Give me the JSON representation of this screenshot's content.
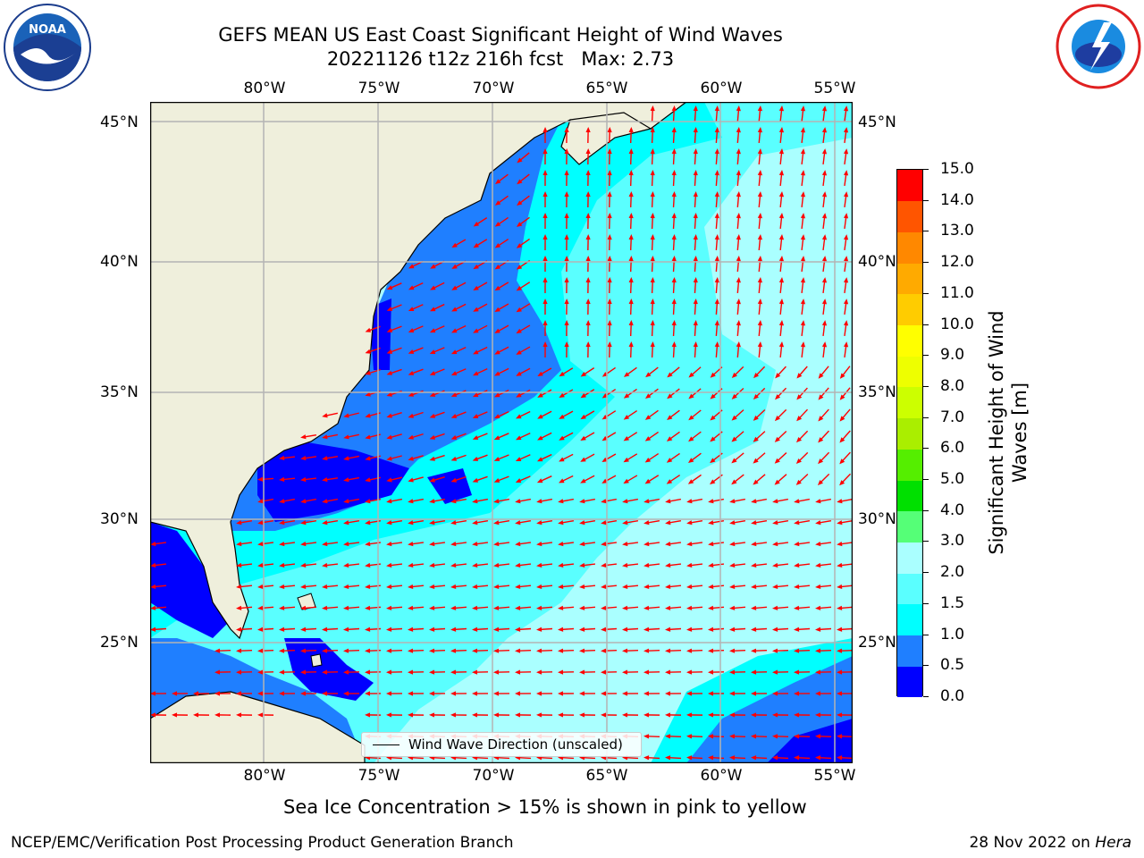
{
  "title": {
    "line1": "GEFS MEAN US East Coast Significant Height of Wind Waves",
    "line2": "20221126 t12z 216h fcst   Max: 2.73"
  },
  "axes": {
    "lon_labels": [
      "80°W",
      "75°W",
      "70°W",
      "65°W",
      "60°W",
      "55°W"
    ],
    "lat_labels": [
      "45°N",
      "40°N",
      "35°N",
      "30°N",
      "25°N"
    ],
    "lon_range": [
      -85,
      -54
    ],
    "lat_range": [
      20.5,
      46
    ]
  },
  "colorbar": {
    "label": "Significant Height of Wind Waves [m]",
    "label_line1": "Significant Height of Wind",
    "label_line2": "Waves [m]",
    "ticks": [
      "15.0",
      "14.0",
      "13.0",
      "12.0",
      "11.0",
      "10.0",
      "9.0",
      "8.0",
      "7.0",
      "6.0",
      "5.0",
      "4.0",
      "3.0",
      "2.0",
      "1.5",
      "1.0",
      "0.5",
      "0.0"
    ],
    "bounds": [
      0.0,
      0.5,
      1.0,
      1.5,
      2.0,
      3.0,
      4.0,
      5.0,
      6.0,
      7.0,
      8.0,
      9.0,
      10.0,
      11.0,
      12.0,
      13.0,
      14.0,
      15.0
    ],
    "colors": [
      "#0000ff",
      "#1f7fff",
      "#00ffff",
      "#5affff",
      "#aaffff",
      "#55ff77",
      "#00e000",
      "#55ee00",
      "#aaee00",
      "#ccff00",
      "#eeff00",
      "#ffff00",
      "#ffcc00",
      "#ffaa00",
      "#ff8800",
      "#ff5500",
      "#ff0000"
    ]
  },
  "legend": {
    "label": "Wind Wave Direction (unscaled)"
  },
  "colors": {
    "land": "#efefdc",
    "grid": "#b4b4b4",
    "arrow": "#ff0000"
  },
  "logos": {
    "noaa": "NOAA",
    "nws": "NATIONAL WEATHER SERVICE"
  },
  "footnote": "Sea Ice Concentration > 15% is shown in pink to yellow",
  "credit": "NCEP/EMC/Verification Post Processing Product Generation Branch",
  "date": {
    "text": "28 Nov 2022 on",
    "machine": "Hera"
  }
}
